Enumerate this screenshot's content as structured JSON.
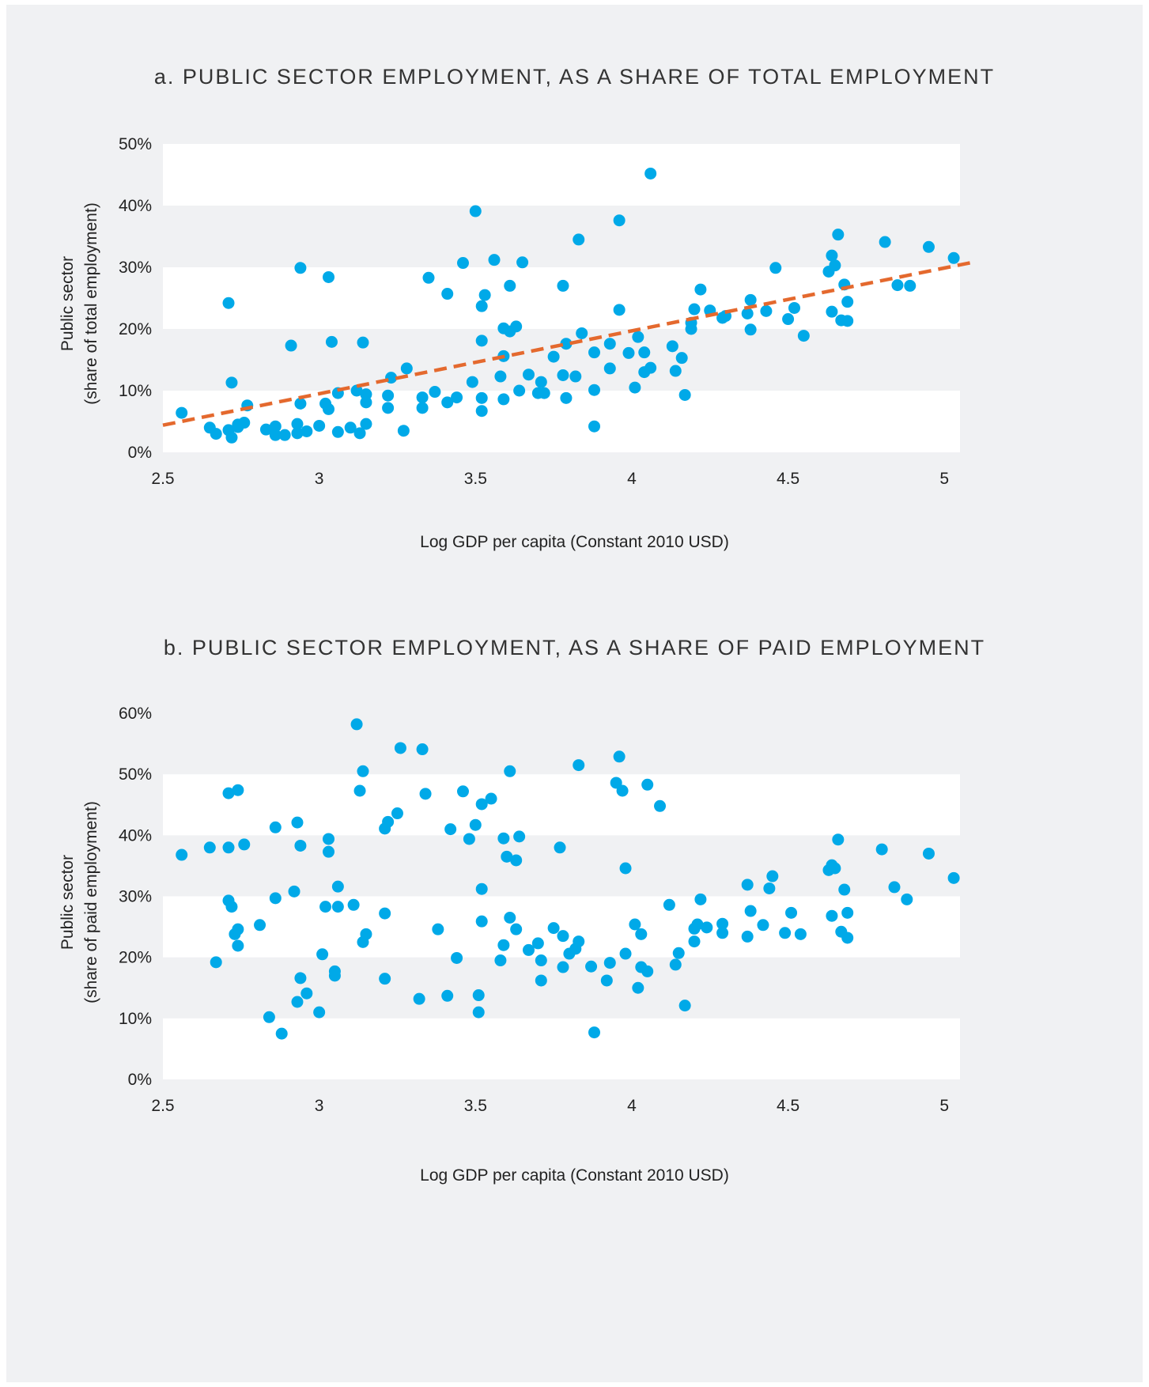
{
  "colors": {
    "background": "#f0f1f3",
    "band": "#ffffff",
    "point": "#00a9e8",
    "trend": "#e4692e"
  },
  "chart_data": [
    {
      "type": "scatter",
      "title": "a. PUBLIC SECTOR EMPLOYMENT, AS A SHARE OF TOTAL EMPLOYMENT",
      "xlabel": "Log GDP per capita (Constant 2010 USD)",
      "ylabel": [
        "Public sector",
        "(share of total employment)"
      ],
      "xlim": [
        2.5,
        5.05
      ],
      "ylim": [
        0,
        50
      ],
      "xticks": [
        "2.5",
        "3",
        "3.5",
        "4",
        "4.5",
        "5"
      ],
      "yticks": [
        "0%",
        "10%",
        "20%",
        "30%",
        "40%",
        "50%"
      ],
      "trendline": {
        "style": "dashed",
        "x": [
          2.5,
          5.1
        ],
        "y": [
          4.4,
          30.9
        ]
      },
      "points": [
        [
          2.56,
          6.4
        ],
        [
          2.65,
          4
        ],
        [
          2.67,
          3
        ],
        [
          2.71,
          3.6
        ],
        [
          2.72,
          2.4
        ],
        [
          2.72,
          11.3
        ],
        [
          2.71,
          24.2
        ],
        [
          2.74,
          4.1
        ],
        [
          2.74,
          4.5
        ],
        [
          2.76,
          4.8
        ],
        [
          2.77,
          7.6
        ],
        [
          2.83,
          3.7
        ],
        [
          2.86,
          2.8
        ],
        [
          2.86,
          4.2
        ],
        [
          2.89,
          2.8
        ],
        [
          2.91,
          17.3
        ],
        [
          2.93,
          4.6
        ],
        [
          2.93,
          3.1
        ],
        [
          2.94,
          7.9
        ],
        [
          2.94,
          29.9
        ],
        [
          2.96,
          3.4
        ],
        [
          3,
          4.3
        ],
        [
          3.02,
          7.9
        ],
        [
          3.03,
          7
        ],
        [
          3.03,
          28.4
        ],
        [
          3.04,
          17.9
        ],
        [
          3.06,
          3.3
        ],
        [
          3.06,
          9.6
        ],
        [
          3.1,
          4
        ],
        [
          3.12,
          10
        ],
        [
          3.13,
          3.1
        ],
        [
          3.14,
          17.8
        ],
        [
          3.15,
          9.4
        ],
        [
          3.15,
          8.1
        ],
        [
          3.15,
          4.6
        ],
        [
          3.22,
          9.2
        ],
        [
          3.22,
          7.2
        ],
        [
          3.23,
          12.1
        ],
        [
          3.27,
          3.5
        ],
        [
          3.28,
          13.6
        ],
        [
          3.33,
          7.2
        ],
        [
          3.33,
          8.9
        ],
        [
          3.35,
          28.3
        ],
        [
          3.37,
          9.8
        ],
        [
          3.41,
          25.7
        ],
        [
          3.41,
          8.1
        ],
        [
          3.44,
          8.9
        ],
        [
          3.46,
          30.7
        ],
        [
          3.49,
          11.4
        ],
        [
          3.5,
          39.1
        ],
        [
          3.52,
          6.7
        ],
        [
          3.52,
          8.8
        ],
        [
          3.52,
          18.1
        ],
        [
          3.52,
          23.7
        ],
        [
          3.53,
          25.5
        ],
        [
          3.56,
          31.2
        ],
        [
          3.58,
          12.3
        ],
        [
          3.59,
          20.1
        ],
        [
          3.59,
          15.6
        ],
        [
          3.59,
          8.6
        ],
        [
          3.61,
          27
        ],
        [
          3.61,
          19.6
        ],
        [
          3.63,
          20.4
        ],
        [
          3.64,
          10
        ],
        [
          3.65,
          30.8
        ],
        [
          3.67,
          12.6
        ],
        [
          3.7,
          9.6
        ],
        [
          3.71,
          11.4
        ],
        [
          3.72,
          9.6
        ],
        [
          3.75,
          15.5
        ],
        [
          3.78,
          27
        ],
        [
          3.78,
          12.5
        ],
        [
          3.79,
          8.8
        ],
        [
          3.79,
          17.6
        ],
        [
          3.82,
          12.3
        ],
        [
          3.83,
          34.5
        ],
        [
          3.84,
          19.3
        ],
        [
          3.88,
          16.2
        ],
        [
          3.88,
          10.1
        ],
        [
          3.88,
          4.2
        ],
        [
          3.93,
          13.6
        ],
        [
          3.93,
          17.6
        ],
        [
          3.96,
          23.1
        ],
        [
          3.96,
          37.6
        ],
        [
          3.99,
          16.1
        ],
        [
          4.01,
          10.5
        ],
        [
          4.02,
          18.7
        ],
        [
          4.04,
          16.2
        ],
        [
          4.04,
          13
        ],
        [
          4.06,
          45.2
        ],
        [
          4.06,
          13.7
        ],
        [
          4.13,
          17.2
        ],
        [
          4.14,
          13.2
        ],
        [
          4.16,
          15.3
        ],
        [
          4.17,
          9.3
        ],
        [
          4.19,
          20
        ],
        [
          4.19,
          21
        ],
        [
          4.2,
          23.2
        ],
        [
          4.22,
          26.4
        ],
        [
          4.25,
          23
        ],
        [
          4.29,
          21.8
        ],
        [
          4.3,
          22.1
        ],
        [
          4.37,
          22.5
        ],
        [
          4.38,
          19.9
        ],
        [
          4.38,
          24.7
        ],
        [
          4.43,
          22.9
        ],
        [
          4.46,
          29.9
        ],
        [
          4.5,
          21.6
        ],
        [
          4.52,
          23.4
        ],
        [
          4.55,
          18.9
        ],
        [
          4.63,
          29.3
        ],
        [
          4.64,
          31.9
        ],
        [
          4.64,
          22.8
        ],
        [
          4.65,
          30.3
        ],
        [
          4.66,
          35.3
        ],
        [
          4.67,
          21.4
        ],
        [
          4.68,
          27.2
        ],
        [
          4.69,
          24.4
        ],
        [
          4.69,
          21.3
        ],
        [
          4.81,
          34.1
        ],
        [
          4.85,
          27.1
        ],
        [
          4.89,
          27
        ],
        [
          4.95,
          33.3
        ],
        [
          5.03,
          31.5
        ]
      ]
    },
    {
      "type": "scatter",
      "title": "b. PUBLIC SECTOR EMPLOYMENT, AS A SHARE OF PAID EMPLOYMENT",
      "xlabel": "Log GDP per capita (Constant 2010 USD)",
      "ylabel": [
        "Public sector",
        "(share of paid employment)"
      ],
      "xlim": [
        2.5,
        5.05
      ],
      "ylim": [
        0,
        60
      ],
      "xticks": [
        "2.5",
        "3",
        "3.5",
        "4",
        "4.5",
        "5"
      ],
      "yticks": [
        "0%",
        "10%",
        "20%",
        "30%",
        "40%",
        "50%",
        "60%"
      ],
      "points": [
        [
          2.56,
          36.8
        ],
        [
          2.65,
          38
        ],
        [
          2.67,
          19.2
        ],
        [
          2.71,
          46.9
        ],
        [
          2.71,
          38
        ],
        [
          2.71,
          29.3
        ],
        [
          2.72,
          28.3
        ],
        [
          2.73,
          23.8
        ],
        [
          2.74,
          47.4
        ],
        [
          2.74,
          24.6
        ],
        [
          2.74,
          21.9
        ],
        [
          2.76,
          38.5
        ],
        [
          2.81,
          25.3
        ],
        [
          2.84,
          10.2
        ],
        [
          2.86,
          41.3
        ],
        [
          2.86,
          29.7
        ],
        [
          2.88,
          7.5
        ],
        [
          2.92,
          30.8
        ],
        [
          2.93,
          42.1
        ],
        [
          2.93,
          12.7
        ],
        [
          2.94,
          38.3
        ],
        [
          2.94,
          16.6
        ],
        [
          2.96,
          14.1
        ],
        [
          3,
          11
        ],
        [
          3.01,
          20.5
        ],
        [
          3.02,
          28.3
        ],
        [
          3.03,
          37.3
        ],
        [
          3.03,
          39.4
        ],
        [
          3.05,
          17
        ],
        [
          3.05,
          17.7
        ],
        [
          3.06,
          31.6
        ],
        [
          3.06,
          28.3
        ],
        [
          3.11,
          28.6
        ],
        [
          3.12,
          58.2
        ],
        [
          3.13,
          47.3
        ],
        [
          3.14,
          50.5
        ],
        [
          3.14,
          22.5
        ],
        [
          3.15,
          23.8
        ],
        [
          3.21,
          41.1
        ],
        [
          3.21,
          27.2
        ],
        [
          3.21,
          16.5
        ],
        [
          3.22,
          42.2
        ],
        [
          3.25,
          43.6
        ],
        [
          3.26,
          54.3
        ],
        [
          3.32,
          13.2
        ],
        [
          3.33,
          54.1
        ],
        [
          3.34,
          46.8
        ],
        [
          3.38,
          24.6
        ],
        [
          3.41,
          13.7
        ],
        [
          3.42,
          41
        ],
        [
          3.44,
          19.9
        ],
        [
          3.46,
          47.2
        ],
        [
          3.48,
          39.4
        ],
        [
          3.5,
          41.7
        ],
        [
          3.51,
          13.8
        ],
        [
          3.51,
          11
        ],
        [
          3.52,
          31.2
        ],
        [
          3.52,
          25.9
        ],
        [
          3.52,
          45.1
        ],
        [
          3.55,
          46
        ],
        [
          3.58,
          19.5
        ],
        [
          3.59,
          22
        ],
        [
          3.59,
          39.5
        ],
        [
          3.6,
          36.5
        ],
        [
          3.61,
          26.5
        ],
        [
          3.61,
          50.5
        ],
        [
          3.63,
          24.6
        ],
        [
          3.63,
          35.9
        ],
        [
          3.64,
          39.8
        ],
        [
          3.67,
          21.2
        ],
        [
          3.7,
          22.3
        ],
        [
          3.71,
          19.5
        ],
        [
          3.71,
          16.2
        ],
        [
          3.75,
          24.8
        ],
        [
          3.77,
          38
        ],
        [
          3.78,
          23.5
        ],
        [
          3.78,
          18.4
        ],
        [
          3.8,
          20.6
        ],
        [
          3.82,
          21.4
        ],
        [
          3.83,
          22.6
        ],
        [
          3.83,
          51.5
        ],
        [
          3.87,
          18.5
        ],
        [
          3.88,
          7.7
        ],
        [
          3.92,
          16.2
        ],
        [
          3.93,
          19.1
        ],
        [
          3.95,
          48.6
        ],
        [
          3.96,
          52.9
        ],
        [
          3.97,
          47.3
        ],
        [
          3.98,
          34.6
        ],
        [
          3.98,
          20.6
        ],
        [
          4.01,
          25.4
        ],
        [
          4.02,
          15
        ],
        [
          4.03,
          18.4
        ],
        [
          4.03,
          23.8
        ],
        [
          4.05,
          48.3
        ],
        [
          4.05,
          17.7
        ],
        [
          4.09,
          44.8
        ],
        [
          4.12,
          28.6
        ],
        [
          4.14,
          18.8
        ],
        [
          4.15,
          20.7
        ],
        [
          4.17,
          12.1
        ],
        [
          4.2,
          24.7
        ],
        [
          4.2,
          22.6
        ],
        [
          4.21,
          25.4
        ],
        [
          4.22,
          29.5
        ],
        [
          4.24,
          24.9
        ],
        [
          4.29,
          25.5
        ],
        [
          4.29,
          24
        ],
        [
          4.37,
          31.9
        ],
        [
          4.37,
          23.4
        ],
        [
          4.38,
          27.6
        ],
        [
          4.42,
          25.3
        ],
        [
          4.44,
          31.3
        ],
        [
          4.45,
          33.3
        ],
        [
          4.49,
          24
        ],
        [
          4.51,
          27.3
        ],
        [
          4.54,
          23.8
        ],
        [
          4.63,
          34.3
        ],
        [
          4.64,
          35.1
        ],
        [
          4.64,
          26.8
        ],
        [
          4.65,
          34.6
        ],
        [
          4.66,
          39.3
        ],
        [
          4.67,
          24.2
        ],
        [
          4.68,
          31.1
        ],
        [
          4.69,
          27.3
        ],
        [
          4.69,
          23.2
        ],
        [
          4.8,
          37.7
        ],
        [
          4.84,
          31.5
        ],
        [
          4.88,
          29.5
        ],
        [
          4.95,
          37
        ],
        [
          5.03,
          33
        ]
      ]
    }
  ]
}
